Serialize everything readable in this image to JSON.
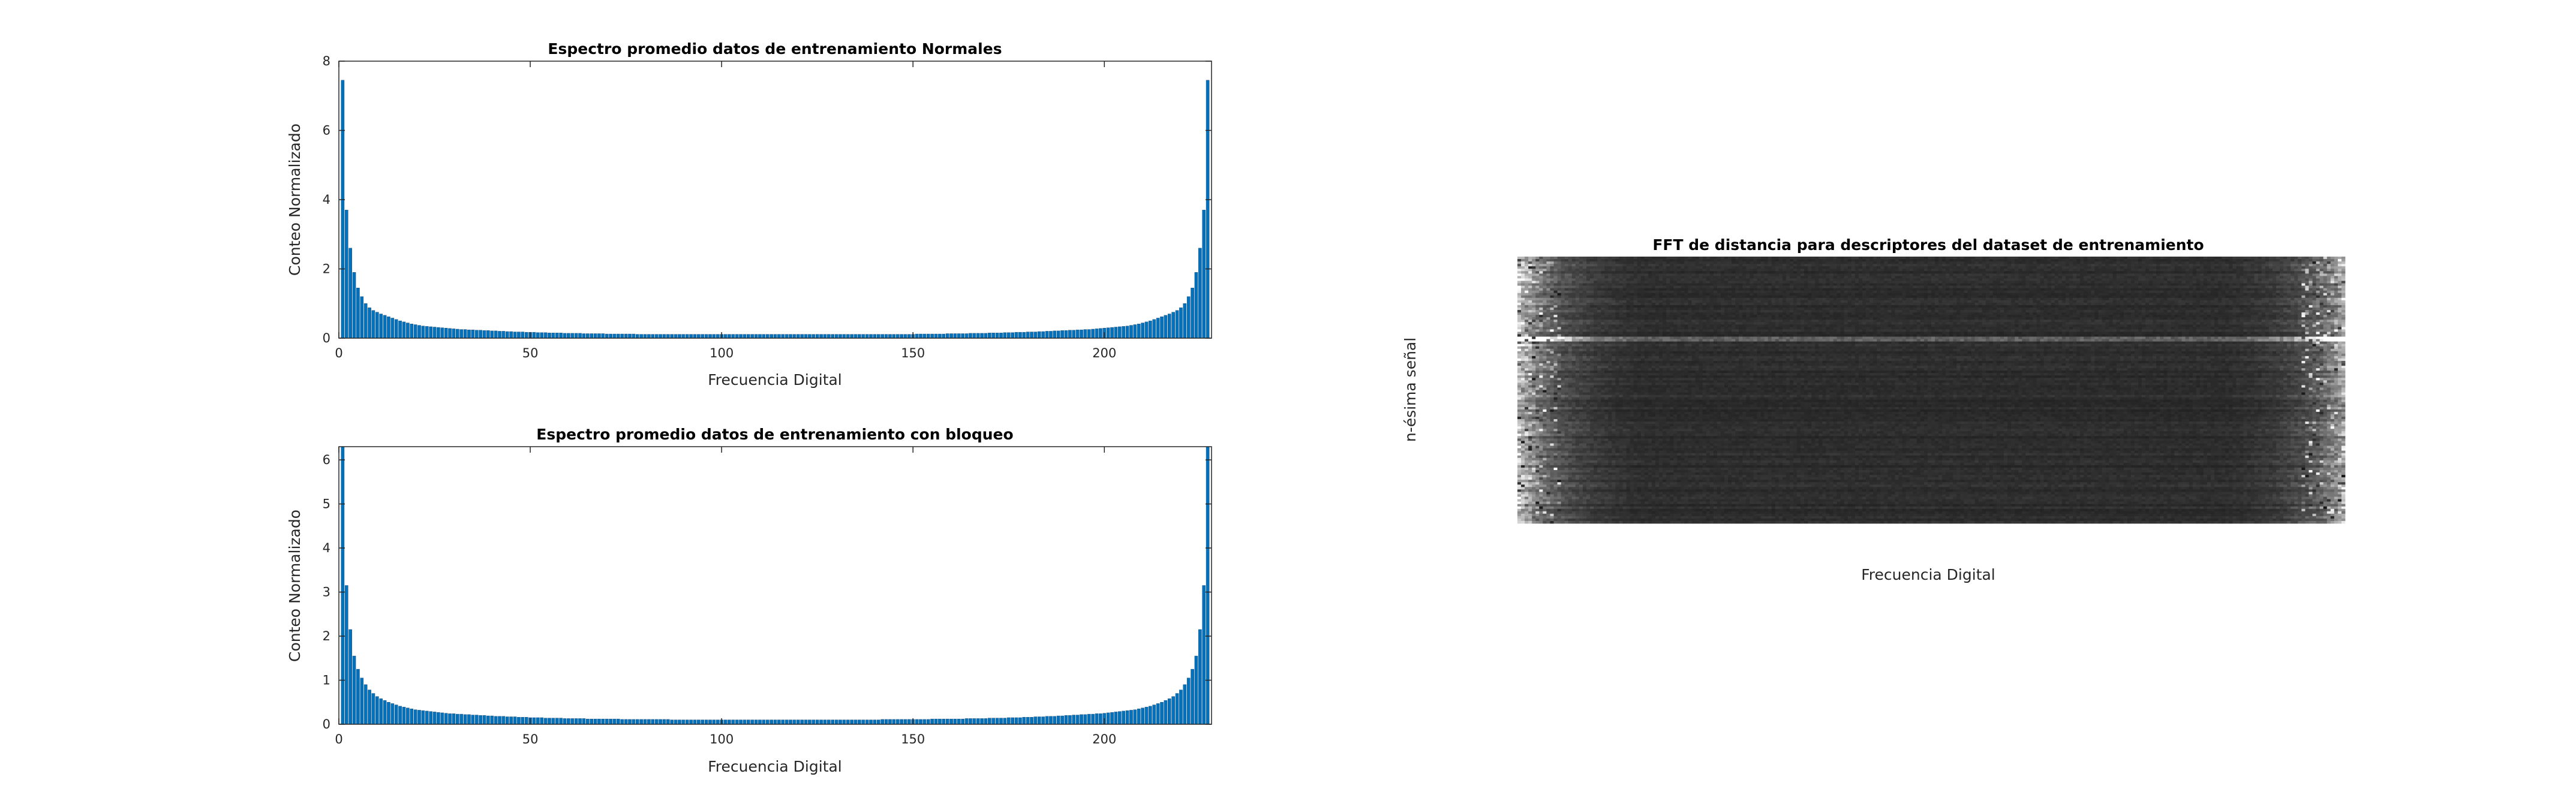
{
  "chart_data": [
    {
      "type": "bar",
      "title": "Espectro promedio datos de entrenamiento Normales",
      "xlabel": "Frecuencia Digital",
      "ylabel": "Conteo Normalizado",
      "xlim": [
        0,
        228
      ],
      "ylim": [
        0,
        8
      ],
      "xticks": [
        0,
        50,
        100,
        150,
        200
      ],
      "yticks": [
        0,
        2,
        4,
        6,
        8
      ],
      "bar_color": "#0072BD",
      "x": [
        1,
        2,
        3,
        4,
        5,
        6,
        7,
        8,
        9,
        10,
        11,
        12,
        13,
        14,
        15,
        16,
        17,
        18,
        19,
        20,
        21,
        22,
        23,
        24,
        25,
        26,
        27,
        28,
        29,
        30,
        31,
        32,
        33,
        34,
        35,
        36,
        37,
        38,
        39,
        40,
        41,
        42,
        43,
        44,
        45,
        46,
        47,
        48,
        49,
        50,
        51,
        52,
        53,
        54,
        55,
        56,
        57,
        58,
        59,
        60,
        61,
        62,
        63,
        64,
        65,
        66,
        67,
        68,
        69,
        70,
        71,
        72,
        73,
        74,
        75,
        76,
        77,
        78,
        79,
        80,
        81,
        82,
        83,
        84,
        85,
        86,
        87,
        88,
        89,
        90,
        91,
        92,
        93,
        94,
        95,
        96,
        97,
        98,
        99,
        100,
        101,
        102,
        103,
        104,
        105,
        106,
        107,
        108,
        109,
        110,
        111,
        112,
        113,
        114,
        115,
        116,
        117,
        118,
        119,
        120,
        121,
        122,
        123,
        124,
        125,
        126,
        127,
        128,
        129,
        130,
        131,
        132,
        133,
        134,
        135,
        136,
        137,
        138,
        139,
        140,
        141,
        142,
        143,
        144,
        145,
        146,
        147,
        148,
        149,
        150,
        151,
        152,
        153,
        154,
        155,
        156,
        157,
        158,
        159,
        160,
        161,
        162,
        163,
        164,
        165,
        166,
        167,
        168,
        169,
        170,
        171,
        172,
        173,
        174,
        175,
        176,
        177,
        178,
        179,
        180,
        181,
        182,
        183,
        184,
        185,
        186,
        187,
        188,
        189,
        190,
        191,
        192,
        193,
        194,
        195,
        196,
        197,
        198,
        199,
        200,
        201,
        202,
        203,
        204,
        205,
        206,
        207,
        208,
        209,
        210,
        211,
        212,
        213,
        214,
        215,
        216,
        217,
        218,
        219,
        220,
        221,
        222,
        223,
        224,
        225,
        226,
        227
      ],
      "values": [
        7.45,
        3.7,
        2.6,
        1.9,
        1.45,
        1.2,
        1.0,
        0.88,
        0.8,
        0.75,
        0.7,
        0.66,
        0.62,
        0.58,
        0.54,
        0.5,
        0.47,
        0.44,
        0.41,
        0.39,
        0.37,
        0.35,
        0.34,
        0.33,
        0.32,
        0.31,
        0.3,
        0.29,
        0.28,
        0.27,
        0.26,
        0.25,
        0.25,
        0.24,
        0.24,
        0.23,
        0.23,
        0.22,
        0.22,
        0.21,
        0.21,
        0.2,
        0.2,
        0.19,
        0.19,
        0.18,
        0.18,
        0.18,
        0.17,
        0.17,
        0.17,
        0.16,
        0.16,
        0.16,
        0.15,
        0.15,
        0.15,
        0.15,
        0.14,
        0.14,
        0.14,
        0.14,
        0.14,
        0.13,
        0.13,
        0.13,
        0.13,
        0.13,
        0.13,
        0.12,
        0.12,
        0.12,
        0.12,
        0.12,
        0.12,
        0.12,
        0.12,
        0.11,
        0.11,
        0.11,
        0.11,
        0.11,
        0.11,
        0.11,
        0.11,
        0.11,
        0.11,
        0.11,
        0.11,
        0.11,
        0.11,
        0.11,
        0.11,
        0.11,
        0.11,
        0.11,
        0.11,
        0.11,
        0.11,
        0.11,
        0.11,
        0.11,
        0.11,
        0.11,
        0.11,
        0.11,
        0.11,
        0.11,
        0.11,
        0.11,
        0.11,
        0.11,
        0.11,
        0.11,
        0.11,
        0.11,
        0.11,
        0.11,
        0.11,
        0.11,
        0.11,
        0.11,
        0.11,
        0.11,
        0.11,
        0.11,
        0.11,
        0.11,
        0.11,
        0.11,
        0.11,
        0.11,
        0.11,
        0.11,
        0.11,
        0.11,
        0.11,
        0.11,
        0.11,
        0.11,
        0.11,
        0.11,
        0.11,
        0.11,
        0.11,
        0.11,
        0.11,
        0.11,
        0.11,
        0.11,
        0.12,
        0.12,
        0.12,
        0.12,
        0.12,
        0.12,
        0.12,
        0.12,
        0.13,
        0.13,
        0.13,
        0.13,
        0.13,
        0.13,
        0.14,
        0.14,
        0.14,
        0.14,
        0.14,
        0.15,
        0.15,
        0.15,
        0.15,
        0.16,
        0.16,
        0.16,
        0.17,
        0.17,
        0.17,
        0.18,
        0.18,
        0.18,
        0.19,
        0.19,
        0.2,
        0.2,
        0.21,
        0.21,
        0.22,
        0.22,
        0.23,
        0.23,
        0.24,
        0.24,
        0.25,
        0.25,
        0.26,
        0.27,
        0.28,
        0.29,
        0.3,
        0.31,
        0.32,
        0.33,
        0.34,
        0.35,
        0.37,
        0.39,
        0.41,
        0.44,
        0.47,
        0.5,
        0.54,
        0.58,
        0.62,
        0.66,
        0.7,
        0.75,
        0.8,
        0.88,
        1.0,
        1.2,
        1.45,
        1.9,
        2.6,
        3.7,
        7.45
      ]
    },
    {
      "type": "bar",
      "title": "Espectro promedio datos de entrenamiento con bloqueo",
      "xlabel": "Frecuencia Digital",
      "ylabel": "Conteo Normalizado",
      "xlim": [
        0,
        228
      ],
      "ylim": [
        0,
        6.3
      ],
      "xticks": [
        0,
        50,
        100,
        150,
        200
      ],
      "yticks": [
        0,
        1,
        2,
        3,
        4,
        5,
        6
      ],
      "bar_color": "#0072BD",
      "x": [
        1,
        2,
        3,
        4,
        5,
        6,
        7,
        8,
        9,
        10,
        11,
        12,
        13,
        14,
        15,
        16,
        17,
        18,
        19,
        20,
        21,
        22,
        23,
        24,
        25,
        26,
        27,
        28,
        29,
        30,
        31,
        32,
        33,
        34,
        35,
        36,
        37,
        38,
        39,
        40,
        41,
        42,
        43,
        44,
        45,
        46,
        47,
        48,
        49,
        50,
        51,
        52,
        53,
        54,
        55,
        56,
        57,
        58,
        59,
        60,
        61,
        62,
        63,
        64,
        65,
        66,
        67,
        68,
        69,
        70,
        71,
        72,
        73,
        74,
        75,
        76,
        77,
        78,
        79,
        80,
        81,
        82,
        83,
        84,
        85,
        86,
        87,
        88,
        89,
        90,
        91,
        92,
        93,
        94,
        95,
        96,
        97,
        98,
        99,
        100,
        101,
        102,
        103,
        104,
        105,
        106,
        107,
        108,
        109,
        110,
        111,
        112,
        113,
        114,
        115,
        116,
        117,
        118,
        119,
        120,
        121,
        122,
        123,
        124,
        125,
        126,
        127,
        128,
        129,
        130,
        131,
        132,
        133,
        134,
        135,
        136,
        137,
        138,
        139,
        140,
        141,
        142,
        143,
        144,
        145,
        146,
        147,
        148,
        149,
        150,
        151,
        152,
        153,
        154,
        155,
        156,
        157,
        158,
        159,
        160,
        161,
        162,
        163,
        164,
        165,
        166,
        167,
        168,
        169,
        170,
        171,
        172,
        173,
        174,
        175,
        176,
        177,
        178,
        179,
        180,
        181,
        182,
        183,
        184,
        185,
        186,
        187,
        188,
        189,
        190,
        191,
        192,
        193,
        194,
        195,
        196,
        197,
        198,
        199,
        200,
        201,
        202,
        203,
        204,
        205,
        206,
        207,
        208,
        209,
        210,
        211,
        212,
        213,
        214,
        215,
        216,
        217,
        218,
        219,
        220,
        221,
        222,
        223,
        224,
        225,
        226,
        227
      ],
      "values": [
        6.3,
        3.15,
        2.15,
        1.55,
        1.25,
        1.05,
        0.9,
        0.78,
        0.7,
        0.63,
        0.58,
        0.54,
        0.5,
        0.47,
        0.44,
        0.41,
        0.39,
        0.37,
        0.35,
        0.33,
        0.32,
        0.31,
        0.3,
        0.29,
        0.28,
        0.27,
        0.26,
        0.25,
        0.24,
        0.24,
        0.23,
        0.23,
        0.22,
        0.22,
        0.21,
        0.21,
        0.2,
        0.2,
        0.19,
        0.19,
        0.18,
        0.18,
        0.18,
        0.17,
        0.17,
        0.17,
        0.16,
        0.16,
        0.16,
        0.15,
        0.15,
        0.15,
        0.15,
        0.14,
        0.14,
        0.14,
        0.14,
        0.14,
        0.13,
        0.13,
        0.13,
        0.13,
        0.13,
        0.13,
        0.12,
        0.12,
        0.12,
        0.12,
        0.12,
        0.12,
        0.12,
        0.12,
        0.12,
        0.11,
        0.11,
        0.11,
        0.11,
        0.11,
        0.11,
        0.11,
        0.11,
        0.11,
        0.11,
        0.11,
        0.11,
        0.11,
        0.1,
        0.1,
        0.1,
        0.1,
        0.1,
        0.1,
        0.1,
        0.1,
        0.1,
        0.1,
        0.1,
        0.1,
        0.1,
        0.1,
        0.1,
        0.1,
        0.1,
        0.1,
        0.1,
        0.1,
        0.1,
        0.1,
        0.1,
        0.1,
        0.1,
        0.1,
        0.1,
        0.1,
        0.1,
        0.1,
        0.1,
        0.1,
        0.1,
        0.1,
        0.1,
        0.1,
        0.1,
        0.1,
        0.1,
        0.1,
        0.1,
        0.1,
        0.1,
        0.1,
        0.1,
        0.1,
        0.1,
        0.1,
        0.1,
        0.1,
        0.1,
        0.1,
        0.1,
        0.1,
        0.1,
        0.11,
        0.11,
        0.11,
        0.11,
        0.11,
        0.11,
        0.11,
        0.11,
        0.11,
        0.11,
        0.11,
        0.11,
        0.11,
        0.12,
        0.12,
        0.12,
        0.12,
        0.12,
        0.12,
        0.12,
        0.12,
        0.12,
        0.13,
        0.13,
        0.13,
        0.13,
        0.13,
        0.13,
        0.14,
        0.14,
        0.14,
        0.14,
        0.14,
        0.15,
        0.15,
        0.15,
        0.15,
        0.16,
        0.16,
        0.16,
        0.17,
        0.17,
        0.17,
        0.18,
        0.18,
        0.18,
        0.19,
        0.19,
        0.2,
        0.2,
        0.21,
        0.21,
        0.22,
        0.22,
        0.23,
        0.23,
        0.24,
        0.24,
        0.25,
        0.26,
        0.27,
        0.28,
        0.29,
        0.3,
        0.31,
        0.32,
        0.33,
        0.35,
        0.37,
        0.39,
        0.41,
        0.44,
        0.47,
        0.5,
        0.54,
        0.58,
        0.63,
        0.7,
        0.78,
        0.9,
        1.05,
        1.25,
        1.55,
        2.15,
        3.15,
        6.3
      ]
    },
    {
      "type": "heatmap",
      "title": "FFT de distancia para descriptores del dataset de entrenamiento",
      "xlabel": "Frecuencia Digital",
      "ylabel": "n-ésima señal",
      "colormap": "gray",
      "columns": 228,
      "rows": 110,
      "column_profile": [
        0.75,
        0.68,
        0.62,
        0.56,
        0.5,
        0.45,
        0.41,
        0.37,
        0.34,
        0.31,
        0.29,
        0.27,
        0.25,
        0.23,
        0.22,
        0.21,
        0.2,
        0.19,
        0.18,
        0.17,
        0.16,
        0.15,
        0.15,
        0.14,
        0.14,
        0.13,
        0.13,
        0.12,
        0.12,
        0.12,
        0.11,
        0.11,
        0.11,
        0.1,
        0.1,
        0.1,
        0.1,
        0.1,
        0.1,
        0.1,
        0.1,
        0.1,
        0.1,
        0.1,
        0.1,
        0.1,
        0.1,
        0.1,
        0.1,
        0.1,
        0.1,
        0.1,
        0.1,
        0.1,
        0.1,
        0.1,
        0.1,
        0.1,
        0.1,
        0.1,
        0.1,
        0.1,
        0.1,
        0.1,
        0.1,
        0.1,
        0.1,
        0.1,
        0.1,
        0.1,
        0.1,
        0.1,
        0.1,
        0.1,
        0.1,
        0.1,
        0.1,
        0.1,
        0.1,
        0.1,
        0.1,
        0.1,
        0.1,
        0.1,
        0.1,
        0.1,
        0.1,
        0.1,
        0.1,
        0.1,
        0.1,
        0.1,
        0.1,
        0.1,
        0.1,
        0.1,
        0.1,
        0.1,
        0.1,
        0.1,
        0.1,
        0.1,
        0.1,
        0.1,
        0.1,
        0.1,
        0.1,
        0.1,
        0.1,
        0.1,
        0.1,
        0.1,
        0.1,
        0.1,
        0.1,
        0.1,
        0.1,
        0.1,
        0.1,
        0.1,
        0.1,
        0.1,
        0.1,
        0.1,
        0.1,
        0.1,
        0.1,
        0.1,
        0.1,
        0.1,
        0.1,
        0.1,
        0.1,
        0.1,
        0.1,
        0.1,
        0.1,
        0.1,
        0.1,
        0.1,
        0.1,
        0.1,
        0.1,
        0.1,
        0.1,
        0.1,
        0.1,
        0.1,
        0.1,
        0.1,
        0.1,
        0.1,
        0.1,
        0.1,
        0.1,
        0.1,
        0.1,
        0.1,
        0.1,
        0.1,
        0.1,
        0.1,
        0.1,
        0.1,
        0.1,
        0.1,
        0.1,
        0.1,
        0.1,
        0.1,
        0.1,
        0.1,
        0.1,
        0.1,
        0.1,
        0.1,
        0.1,
        0.1,
        0.1,
        0.1,
        0.1,
        0.1,
        0.1,
        0.1,
        0.1,
        0.1,
        0.1,
        0.1,
        0.1,
        0.1,
        0.1,
        0.1,
        0.1,
        0.1,
        0.1,
        0.1,
        0.1,
        0.11,
        0.11,
        0.11,
        0.12,
        0.12,
        0.12,
        0.13,
        0.13,
        0.14,
        0.14,
        0.15,
        0.15,
        0.16,
        0.17,
        0.18,
        0.19,
        0.2,
        0.21,
        0.22,
        0.23,
        0.25,
        0.27,
        0.29,
        0.31,
        0.34,
        0.37,
        0.41,
        0.45,
        0.5,
        0.56,
        0.62,
        0.68,
        0.75
      ],
      "bright_rows": [
        33,
        34
      ]
    }
  ]
}
